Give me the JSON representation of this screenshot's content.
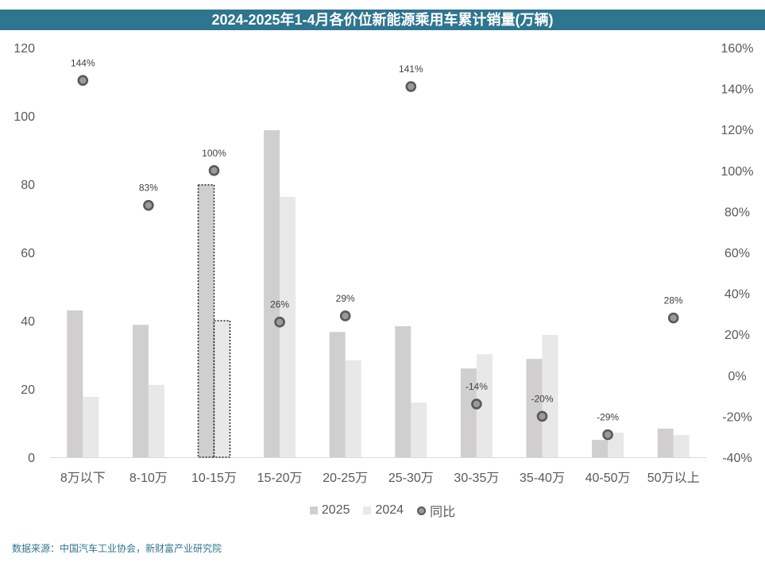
{
  "colors": {
    "title_bg": "#2e758f",
    "title_text": "#ffffff",
    "axis_text": "#595959",
    "axis_line": "#d9d9d9",
    "data_label_text": "#404040",
    "highlight_outline": "#262626",
    "source_text": "#2e758f"
  },
  "source": "数据来源：中国汽车工业协会，新财富产业研究院",
  "chart_data": {
    "type": "bar",
    "title": "2024-2025年1-4月各价位新能源乘用车累计销量(万辆)",
    "categories": [
      "8万以下",
      "8-10万",
      "10-15万",
      "15-20万",
      "20-25万",
      "25-30万",
      "30-35万",
      "35-40万",
      "40-50万",
      "50万以上"
    ],
    "series": [
      {
        "name": "2025",
        "type": "bar",
        "secondary_axis": false,
        "color": "#d0cece",
        "values": [
          43.0,
          38.8,
          79.8,
          95.8,
          36.7,
          38.4,
          26.0,
          28.8,
          5.1,
          8.4
        ]
      },
      {
        "name": "2024",
        "type": "bar",
        "secondary_axis": false,
        "color": "#e8e8e8",
        "values": [
          17.7,
          21.2,
          40.0,
          76.3,
          28.4,
          16.0,
          30.2,
          35.8,
          7.2,
          6.5
        ]
      },
      {
        "name": "同比",
        "type": "scatter",
        "secondary_axis": true,
        "color": "#9a9a9a",
        "stroke_color": "#595959",
        "values": [
          144,
          83,
          100,
          26,
          29,
          141,
          -14,
          -20,
          -29,
          28
        ],
        "labels": [
          "144%",
          "83%",
          "100%",
          "26%",
          "29%",
          "141%",
          "-14%",
          "-20%",
          "-29%",
          "28%"
        ]
      }
    ],
    "highlight": [
      false,
      false,
      true,
      false,
      false,
      false,
      false,
      false,
      false,
      false
    ],
    "ylim": [
      0,
      120
    ],
    "y_ticks": [
      "0",
      "20",
      "40",
      "60",
      "80",
      "100",
      "120"
    ],
    "y2lim": [
      -40,
      160
    ],
    "y2_ticks": [
      "-40%",
      "-20%",
      "0%",
      "20%",
      "40%",
      "60%",
      "80%",
      "100%",
      "120%",
      "140%",
      "160%"
    ],
    "grid": false,
    "legend": "bottom"
  }
}
